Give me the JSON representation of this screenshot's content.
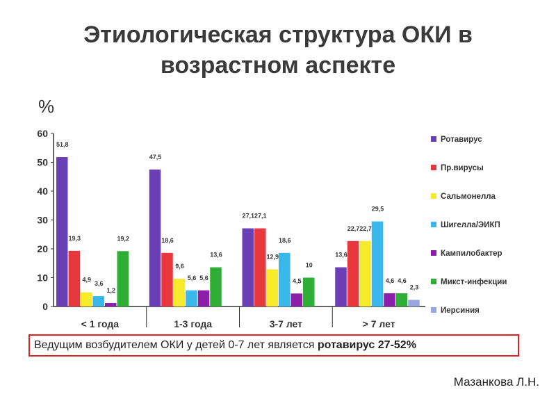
{
  "slide": {
    "title_line1": "Этиологическая структура ОКИ в",
    "title_line2": "возрастном аспекте",
    "unit": "%",
    "callout_text": "Ведущим возбудителем ОКИ у детей 0-7 лет является ",
    "callout_bold": "ротавирус 27-52%",
    "author": "Мазанкова Л.Н."
  },
  "chart_data": {
    "type": "bar",
    "title": "",
    "xlabel": "",
    "ylabel": "%",
    "ylim": [
      0,
      60
    ],
    "yticks": [
      0,
      10,
      20,
      30,
      40,
      50,
      60
    ],
    "grid": false,
    "legend_position": "right",
    "categories": [
      "< 1 года",
      "1-3 года",
      "3-7 лет",
      "> 7 лет"
    ],
    "series": [
      {
        "name": "Ротавирус",
        "color": "#6a3fb5",
        "values": [
          51.8,
          47.5,
          27.1,
          13.6
        ],
        "labels": [
          "51,8",
          "47,5",
          "27,1",
          "13,6"
        ]
      },
      {
        "name": "Пр.вирусы",
        "color": "#e8383d",
        "values": [
          19.3,
          18.6,
          27.1,
          22.7
        ],
        "labels": [
          "19,3",
          "18,6",
          "27,1",
          "22,7"
        ]
      },
      {
        "name": "Сальмонелла",
        "color": "#f7ea2b",
        "values": [
          4.9,
          9.6,
          12.9,
          22.7
        ],
        "labels": [
          "4,9",
          "9,6",
          "12,9",
          "22,7"
        ]
      },
      {
        "name": "Шигелла/ЭИКП",
        "color": "#3ab8ec",
        "values": [
          3.6,
          5.6,
          18.6,
          29.5
        ],
        "labels": [
          "3,6",
          "5,6",
          "18,6",
          "29,5"
        ]
      },
      {
        "name": "Кампилобактер",
        "color": "#8b1fa9",
        "values": [
          1.2,
          5.6,
          4.5,
          4.6
        ],
        "labels": [
          "1,2",
          "5,6",
          "4,5",
          "4,6"
        ]
      },
      {
        "name": "Микст-инфекции",
        "color": "#2fae36",
        "values": [
          19.2,
          13.6,
          10,
          4.6
        ],
        "labels": [
          "19,2",
          "13,6",
          "10",
          "4,6"
        ]
      },
      {
        "name": "Иерсиния",
        "color": "#9aa6e0",
        "values": [
          null,
          null,
          null,
          2.3
        ],
        "labels": [
          "",
          "",
          "",
          "2,3"
        ]
      }
    ]
  }
}
